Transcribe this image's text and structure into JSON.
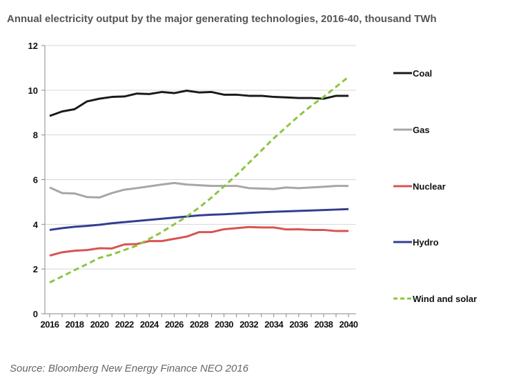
{
  "chart_data": {
    "type": "line",
    "title": "Annual electricity output by the major generating technologies, 2016-40, thousand TWh",
    "source": "Source: Bloomberg New Energy Finance NEO 2016",
    "xlabel": "",
    "ylabel": "",
    "ylim": [
      0,
      12
    ],
    "yticks": [
      "0",
      "2",
      "4",
      "6",
      "8",
      "10",
      "12"
    ],
    "xticks": [
      "2016",
      "2018",
      "2020",
      "2022",
      "2024",
      "2026",
      "2028",
      "2030",
      "2032",
      "2034",
      "2036",
      "2038",
      "2040"
    ],
    "x": [
      2016,
      2017,
      2018,
      2019,
      2020,
      2021,
      2022,
      2023,
      2024,
      2025,
      2026,
      2027,
      2028,
      2029,
      2030,
      2031,
      2032,
      2033,
      2034,
      2035,
      2036,
      2037,
      2038,
      2039,
      2040
    ],
    "grid": true,
    "legend": "right",
    "series": [
      {
        "name": "Coal",
        "color": "#1a1a1a",
        "dashed": false,
        "values": [
          8.85,
          9.05,
          9.15,
          9.5,
          9.62,
          9.7,
          9.72,
          9.85,
          9.83,
          9.92,
          9.87,
          9.98,
          9.9,
          9.92,
          9.8,
          9.8,
          9.75,
          9.75,
          9.7,
          9.68,
          9.65,
          9.65,
          9.62,
          9.75,
          9.75
        ]
      },
      {
        "name": "Gas",
        "color": "#a6a6a6",
        "dashed": false,
        "values": [
          5.65,
          5.4,
          5.38,
          5.22,
          5.2,
          5.4,
          5.55,
          5.62,
          5.7,
          5.78,
          5.85,
          5.78,
          5.75,
          5.72,
          5.72,
          5.72,
          5.62,
          5.6,
          5.58,
          5.65,
          5.62,
          5.65,
          5.68,
          5.72,
          5.72
        ]
      },
      {
        "name": "Nuclear",
        "color": "#d9534f",
        "dashed": false,
        "values": [
          2.6,
          2.75,
          2.82,
          2.85,
          2.93,
          2.92,
          3.1,
          3.12,
          3.25,
          3.25,
          3.35,
          3.45,
          3.65,
          3.65,
          3.78,
          3.83,
          3.88,
          3.86,
          3.86,
          3.77,
          3.78,
          3.75,
          3.75,
          3.7,
          3.7
        ]
      },
      {
        "name": "Hydro",
        "color": "#333d8f",
        "dashed": false,
        "values": [
          3.75,
          3.83,
          3.89,
          3.93,
          3.98,
          4.05,
          4.1,
          4.15,
          4.2,
          4.25,
          4.3,
          4.35,
          4.4,
          4.43,
          4.45,
          4.48,
          4.51,
          4.54,
          4.56,
          4.58,
          4.6,
          4.62,
          4.64,
          4.66,
          4.68
        ]
      },
      {
        "name": "Wind and solar",
        "color": "#8cc540",
        "dashed": true,
        "values": [
          1.4,
          1.67,
          1.95,
          2.22,
          2.5,
          2.65,
          2.85,
          3.05,
          3.35,
          3.65,
          4.0,
          4.35,
          4.75,
          5.2,
          5.7,
          6.2,
          6.75,
          7.3,
          7.85,
          8.35,
          8.85,
          9.3,
          9.7,
          10.15,
          10.6
        ]
      }
    ]
  }
}
